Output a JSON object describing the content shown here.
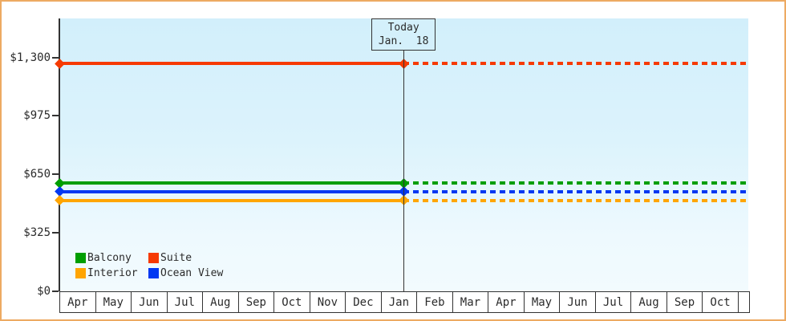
{
  "chart_data": {
    "type": "line",
    "title": "",
    "description": "Cruise cabin price history: flat horizontal price lines per cabin category, solid up to today then dotted projection",
    "x_categories": [
      "Apr",
      "May",
      "Jun",
      "Jul",
      "Aug",
      "Sep",
      "Oct",
      "Nov",
      "Dec",
      "Jan",
      "Feb",
      "Mar",
      "Apr",
      "May",
      "Jun",
      "Jul",
      "Aug",
      "Sep",
      "Oct",
      ""
    ],
    "y_axis": {
      "ticks": [
        {
          "label": "$0",
          "value": 0
        },
        {
          "label": "$325",
          "value": 325
        },
        {
          "label": "$650",
          "value": 650
        },
        {
          "label": "$975",
          "value": 975
        },
        {
          "label": "$1,300",
          "value": 1300
        }
      ],
      "axis_max_label": "$1,300",
      "grid": false
    },
    "series": [
      {
        "name": "Suite",
        "color": "#f63a02",
        "value": 1265
      },
      {
        "name": "Balcony",
        "color": "#009e00",
        "value": 600
      },
      {
        "name": "Ocean View",
        "color": "#0338f2",
        "value": 555
      },
      {
        "name": "Interior",
        "color": "#ffa502",
        "value": 505
      }
    ],
    "today_marker": {
      "line1": "Today",
      "line2": "Jan.  18",
      "x_fraction": 0.499
    },
    "legend": {
      "position": "bottom-left",
      "rows": [
        [
          "Balcony",
          "Suite"
        ],
        [
          "Interior",
          "Ocean View"
        ]
      ]
    }
  },
  "colors": {
    "frame_border": "#edaa62",
    "plot_bg_top": "#d2effb",
    "plot_bg_bottom": "#f2fbfe",
    "axis": "#333333",
    "text": "#2b2b2b"
  }
}
